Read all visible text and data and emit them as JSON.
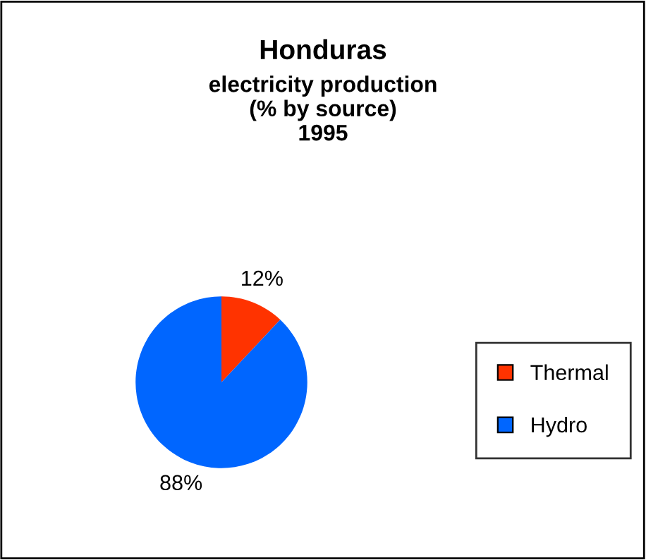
{
  "chart_data": {
    "type": "pie",
    "title": "Honduras",
    "subtitle": "electricity production\n(% by source)\n1995",
    "categories": [
      "Thermal",
      "Hydro"
    ],
    "values": [
      12,
      88
    ],
    "colors": [
      "#ff3300",
      "#0066ff"
    ],
    "value_labels": [
      "12%",
      "88%"
    ],
    "legend": "right"
  }
}
